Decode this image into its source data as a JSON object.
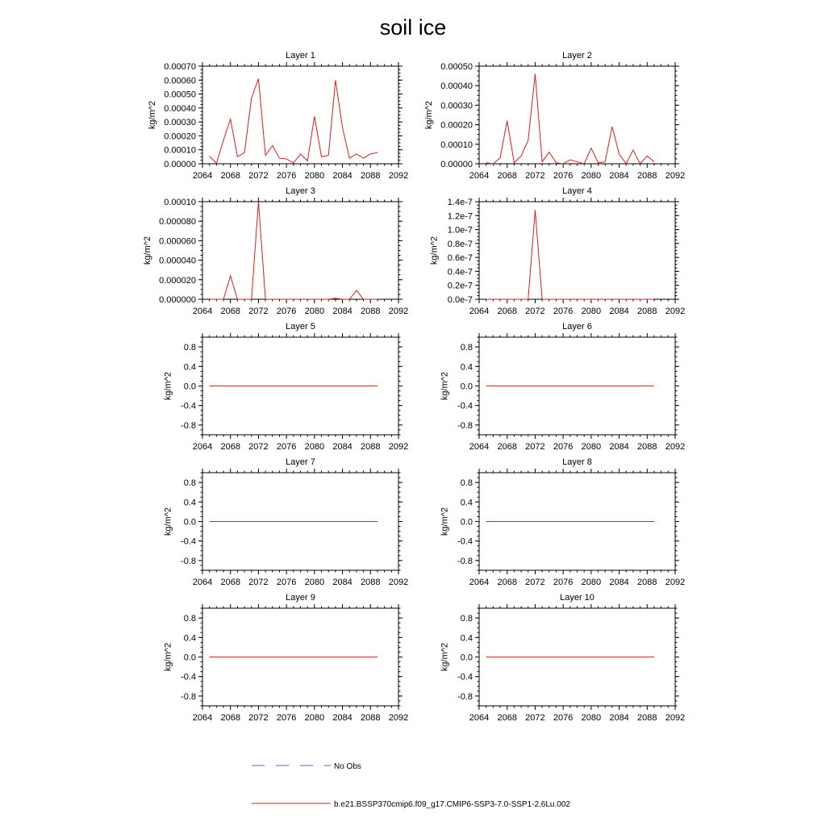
{
  "page_title": "soil ice",
  "legend": [
    {
      "label": "No Obs",
      "color": "#5b5bd6",
      "style": "dashed"
    },
    {
      "label": "b.e21.BSSP370cmip6.f09_g17.CMIP6-SSP3-7.0-SSP1-2.6Lu.002",
      "color": "#e31a1c",
      "style": "solid"
    }
  ],
  "colors": {
    "series": "#e31a1c",
    "axis": "#000000",
    "obs": "#5b5bd6"
  },
  "chart_data": [
    {
      "type": "line",
      "title": "Layer 1",
      "ylabel": "kg/m^2",
      "xlim": [
        2064,
        2092
      ],
      "ylim": [
        0,
        0.0007
      ],
      "xticks": [
        "2064",
        "2068",
        "2072",
        "2076",
        "2080",
        "2084",
        "2088",
        "2092"
      ],
      "yticks": [
        "0.00000",
        "0.00010",
        "0.00020",
        "0.00030",
        "0.00040",
        "0.00050",
        "0.00060",
        "0.00070"
      ],
      "series": [
        {
          "x": [
            2065,
            2066,
            2067,
            2068,
            2069,
            2070,
            2071,
            2072,
            2073,
            2074,
            2075,
            2076,
            2077,
            2078,
            2079,
            2080,
            2081,
            2082,
            2083,
            2084,
            2085,
            2086,
            2087,
            2088,
            2089
          ],
          "values": [
            5.5e-05,
            3e-06,
            0.00017,
            0.00032,
            5e-05,
            8e-05,
            0.00047,
            0.00061,
            6e-05,
            0.00013,
            4e-05,
            3.5e-05,
            5e-06,
            7e-05,
            2e-05,
            0.00034,
            5e-05,
            6e-05,
            0.0006,
            0.00026,
            4e-05,
            7e-05,
            4e-05,
            7e-05,
            8e-05
          ]
        }
      ]
    },
    {
      "type": "line",
      "title": "Layer 2",
      "ylabel": "kg/m^2",
      "xlim": [
        2064,
        2092
      ],
      "ylim": [
        0,
        0.0005
      ],
      "xticks": [
        "2064",
        "2068",
        "2072",
        "2076",
        "2080",
        "2084",
        "2088",
        "2092"
      ],
      "yticks": [
        "0.00000",
        "0.00010",
        "0.00020",
        "0.00030",
        "0.00040",
        "0.00050"
      ],
      "series": [
        {
          "x": [
            2065,
            2066,
            2067,
            2068,
            2069,
            2070,
            2071,
            2072,
            2073,
            2074,
            2075,
            2076,
            2077,
            2078,
            2079,
            2080,
            2081,
            2082,
            2083,
            2084,
            2085,
            2086,
            2087,
            2088,
            2089
          ],
          "values": [
            5e-06,
            0.0,
            3e-05,
            0.00022,
            5e-06,
            4e-05,
            0.00012,
            0.00046,
            1e-05,
            6e-05,
            5e-06,
            0.0,
            2e-05,
            1e-05,
            0.0,
            8e-05,
            5e-06,
            1e-05,
            0.00019,
            5e-05,
            0.0,
            7e-05,
            0.0,
            4e-05,
            1e-05
          ]
        }
      ]
    },
    {
      "type": "line",
      "title": "Layer 3",
      "ylabel": "kg/m^2",
      "xlim": [
        2064,
        2092
      ],
      "ylim": [
        0,
        0.0001
      ],
      "xticks": [
        "2064",
        "2068",
        "2072",
        "2076",
        "2080",
        "2084",
        "2088",
        "2092"
      ],
      "yticks": [
        "0.000000",
        "0.000020",
        "0.000040",
        "0.000060",
        "0.000080",
        "0.00010"
      ],
      "series": [
        {
          "x": [
            2065,
            2066,
            2067,
            2068,
            2069,
            2070,
            2071,
            2072,
            2073,
            2074,
            2075,
            2076,
            2077,
            2078,
            2079,
            2080,
            2081,
            2082,
            2083,
            2084,
            2085,
            2086,
            2087,
            2088,
            2089
          ],
          "values": [
            0,
            0,
            0,
            2.4e-05,
            0,
            0,
            0,
            0.0001,
            0,
            0,
            0,
            0,
            0,
            0,
            0,
            0,
            0,
            0,
            1e-06,
            0,
            0,
            9e-06,
            0,
            0,
            0
          ]
        }
      ]
    },
    {
      "type": "line",
      "title": "Layer 4",
      "ylabel": "kg/m^2",
      "xlim": [
        2064,
        2092
      ],
      "ylim": [
        0,
        1.4e-07
      ],
      "xticks": [
        "2064",
        "2068",
        "2072",
        "2076",
        "2080",
        "2084",
        "2088",
        "2092"
      ],
      "yticks": [
        "0.0e-7",
        "0.2e-7",
        "0.4e-7",
        "0.6e-7",
        "0.8e-7",
        "1.0e-7",
        "1.2e-7",
        "1.4e-7"
      ],
      "series": [
        {
          "x": [
            2065,
            2066,
            2067,
            2068,
            2069,
            2070,
            2071,
            2072,
            2073,
            2074,
            2075,
            2076,
            2077,
            2078,
            2079,
            2080,
            2081,
            2082,
            2083,
            2084,
            2085,
            2086,
            2087,
            2088,
            2089
          ],
          "values": [
            0,
            0,
            0,
            0,
            0,
            0,
            0,
            1.28e-07,
            0,
            0,
            0,
            0,
            0,
            0,
            0,
            0,
            0,
            0,
            0,
            0,
            0,
            0,
            0,
            0,
            0
          ]
        }
      ]
    },
    {
      "type": "line",
      "title": "Layer 5",
      "ylabel": "kg/m^2",
      "xlim": [
        2064,
        2092
      ],
      "ylim": [
        -1,
        1
      ],
      "xticks": [
        "2064",
        "2068",
        "2072",
        "2076",
        "2080",
        "2084",
        "2088",
        "2092"
      ],
      "yticks": [
        "-0.8",
        "-0.4",
        "0.0",
        "0.4",
        "0.8"
      ],
      "series": [
        {
          "x": [
            2065,
            2089
          ],
          "values": [
            0,
            0
          ]
        }
      ]
    },
    {
      "type": "line",
      "title": "Layer 6",
      "ylabel": "kg/m^2",
      "xlim": [
        2064,
        2092
      ],
      "ylim": [
        -1,
        1
      ],
      "xticks": [
        "2064",
        "2068",
        "2072",
        "2076",
        "2080",
        "2084",
        "2088",
        "2092"
      ],
      "yticks": [
        "-0.8",
        "-0.4",
        "0.0",
        "0.4",
        "0.8"
      ],
      "series": [
        {
          "x": [
            2065,
            2089
          ],
          "values": [
            0,
            0
          ]
        }
      ]
    },
    {
      "type": "line",
      "title": "Layer 7",
      "ylabel": "kg/m^2",
      "xlim": [
        2064,
        2092
      ],
      "ylim": [
        -1,
        1
      ],
      "xticks": [
        "2064",
        "2068",
        "2072",
        "2076",
        "2080",
        "2084",
        "2088",
        "2092"
      ],
      "yticks": [
        "-0.8",
        "-0.4",
        "0.0",
        "0.4",
        "0.8"
      ],
      "series": [
        {
          "x": [
            2065,
            2089
          ],
          "values": [
            0,
            0
          ]
        }
      ]
    },
    {
      "type": "line",
      "title": "Layer 8",
      "ylabel": "kg/m^2",
      "xlim": [
        2064,
        2092
      ],
      "ylim": [
        -1,
        1
      ],
      "xticks": [
        "2064",
        "2068",
        "2072",
        "2076",
        "2080",
        "2084",
        "2088",
        "2092"
      ],
      "yticks": [
        "-0.8",
        "-0.4",
        "0.0",
        "0.4",
        "0.8"
      ],
      "series": [
        {
          "x": [
            2065,
            2089
          ],
          "values": [
            0,
            0
          ]
        }
      ]
    },
    {
      "type": "line",
      "title": "Layer 9",
      "ylabel": "kg/m^2",
      "xlim": [
        2064,
        2092
      ],
      "ylim": [
        -1,
        1
      ],
      "xticks": [
        "2064",
        "2068",
        "2072",
        "2076",
        "2080",
        "2084",
        "2088",
        "2092"
      ],
      "yticks": [
        "-0.8",
        "-0.4",
        "0.0",
        "0.4",
        "0.8"
      ],
      "series": [
        {
          "x": [
            2065,
            2089
          ],
          "values": [
            0,
            0
          ]
        }
      ]
    },
    {
      "type": "line",
      "title": "Layer 10",
      "ylabel": "kg/m^2",
      "xlim": [
        2064,
        2092
      ],
      "ylim": [
        -1,
        1
      ],
      "xticks": [
        "2064",
        "2068",
        "2072",
        "2076",
        "2080",
        "2084",
        "2088",
        "2092"
      ],
      "yticks": [
        "-0.8",
        "-0.4",
        "0.0",
        "0.4",
        "0.8"
      ],
      "series": [
        {
          "x": [
            2065,
            2089
          ],
          "values": [
            0,
            0
          ]
        }
      ]
    }
  ]
}
